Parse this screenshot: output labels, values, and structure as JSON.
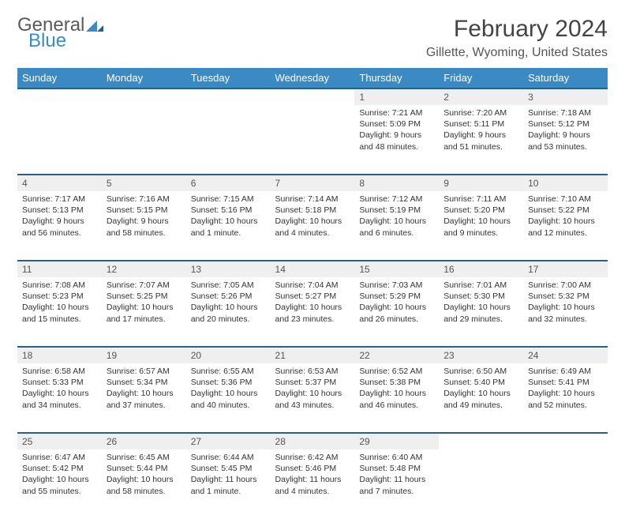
{
  "logo": {
    "general": "General",
    "blue": "Blue",
    "tri_color": "#3b8ac4"
  },
  "title": "February 2024",
  "subtitle": "Gillette, Wyoming, United States",
  "colors": {
    "header_bg": "#3b8ac4",
    "header_border": "#2b5f87",
    "daynum_bg": "#efefef",
    "page_bg": "#ffffff",
    "text": "#333333"
  },
  "day_headers": [
    "Sunday",
    "Monday",
    "Tuesday",
    "Wednesday",
    "Thursday",
    "Friday",
    "Saturday"
  ],
  "weeks": [
    [
      null,
      null,
      null,
      null,
      {
        "n": "1",
        "sunrise": "7:21 AM",
        "sunset": "5:09 PM",
        "dl": "9 hours and 48 minutes."
      },
      {
        "n": "2",
        "sunrise": "7:20 AM",
        "sunset": "5:11 PM",
        "dl": "9 hours and 51 minutes."
      },
      {
        "n": "3",
        "sunrise": "7:18 AM",
        "sunset": "5:12 PM",
        "dl": "9 hours and 53 minutes."
      }
    ],
    [
      {
        "n": "4",
        "sunrise": "7:17 AM",
        "sunset": "5:13 PM",
        "dl": "9 hours and 56 minutes."
      },
      {
        "n": "5",
        "sunrise": "7:16 AM",
        "sunset": "5:15 PM",
        "dl": "9 hours and 58 minutes."
      },
      {
        "n": "6",
        "sunrise": "7:15 AM",
        "sunset": "5:16 PM",
        "dl": "10 hours and 1 minute."
      },
      {
        "n": "7",
        "sunrise": "7:14 AM",
        "sunset": "5:18 PM",
        "dl": "10 hours and 4 minutes."
      },
      {
        "n": "8",
        "sunrise": "7:12 AM",
        "sunset": "5:19 PM",
        "dl": "10 hours and 6 minutes."
      },
      {
        "n": "9",
        "sunrise": "7:11 AM",
        "sunset": "5:20 PM",
        "dl": "10 hours and 9 minutes."
      },
      {
        "n": "10",
        "sunrise": "7:10 AM",
        "sunset": "5:22 PM",
        "dl": "10 hours and 12 minutes."
      }
    ],
    [
      {
        "n": "11",
        "sunrise": "7:08 AM",
        "sunset": "5:23 PM",
        "dl": "10 hours and 15 minutes."
      },
      {
        "n": "12",
        "sunrise": "7:07 AM",
        "sunset": "5:25 PM",
        "dl": "10 hours and 17 minutes."
      },
      {
        "n": "13",
        "sunrise": "7:05 AM",
        "sunset": "5:26 PM",
        "dl": "10 hours and 20 minutes."
      },
      {
        "n": "14",
        "sunrise": "7:04 AM",
        "sunset": "5:27 PM",
        "dl": "10 hours and 23 minutes."
      },
      {
        "n": "15",
        "sunrise": "7:03 AM",
        "sunset": "5:29 PM",
        "dl": "10 hours and 26 minutes."
      },
      {
        "n": "16",
        "sunrise": "7:01 AM",
        "sunset": "5:30 PM",
        "dl": "10 hours and 29 minutes."
      },
      {
        "n": "17",
        "sunrise": "7:00 AM",
        "sunset": "5:32 PM",
        "dl": "10 hours and 32 minutes."
      }
    ],
    [
      {
        "n": "18",
        "sunrise": "6:58 AM",
        "sunset": "5:33 PM",
        "dl": "10 hours and 34 minutes."
      },
      {
        "n": "19",
        "sunrise": "6:57 AM",
        "sunset": "5:34 PM",
        "dl": "10 hours and 37 minutes."
      },
      {
        "n": "20",
        "sunrise": "6:55 AM",
        "sunset": "5:36 PM",
        "dl": "10 hours and 40 minutes."
      },
      {
        "n": "21",
        "sunrise": "6:53 AM",
        "sunset": "5:37 PM",
        "dl": "10 hours and 43 minutes."
      },
      {
        "n": "22",
        "sunrise": "6:52 AM",
        "sunset": "5:38 PM",
        "dl": "10 hours and 46 minutes."
      },
      {
        "n": "23",
        "sunrise": "6:50 AM",
        "sunset": "5:40 PM",
        "dl": "10 hours and 49 minutes."
      },
      {
        "n": "24",
        "sunrise": "6:49 AM",
        "sunset": "5:41 PM",
        "dl": "10 hours and 52 minutes."
      }
    ],
    [
      {
        "n": "25",
        "sunrise": "6:47 AM",
        "sunset": "5:42 PM",
        "dl": "10 hours and 55 minutes."
      },
      {
        "n": "26",
        "sunrise": "6:45 AM",
        "sunset": "5:44 PM",
        "dl": "10 hours and 58 minutes."
      },
      {
        "n": "27",
        "sunrise": "6:44 AM",
        "sunset": "5:45 PM",
        "dl": "11 hours and 1 minute."
      },
      {
        "n": "28",
        "sunrise": "6:42 AM",
        "sunset": "5:46 PM",
        "dl": "11 hours and 4 minutes."
      },
      {
        "n": "29",
        "sunrise": "6:40 AM",
        "sunset": "5:48 PM",
        "dl": "11 hours and 7 minutes."
      },
      null,
      null
    ]
  ],
  "labels": {
    "sunrise": "Sunrise:",
    "sunset": "Sunset:",
    "daylight": "Daylight:"
  }
}
